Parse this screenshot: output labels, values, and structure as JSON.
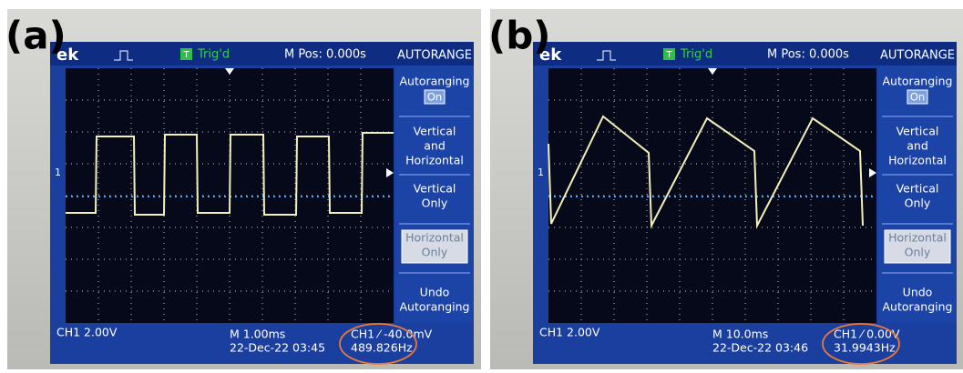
{
  "panels": [
    {
      "label": "(a)",
      "header": {
        "brand": "ek",
        "trig_icon": "T",
        "trigger": "Trig'd",
        "m_pos": "M Pos: 0.000s"
      },
      "marker": "1",
      "menu": {
        "title": "AUTORANGE",
        "items": [
          {
            "lines": [
              "Autoranging"
            ],
            "value": "On"
          },
          {
            "lines": [
              "Vertical",
              "and",
              "Horizontal"
            ]
          },
          {
            "lines": [
              "Vertical",
              "Only"
            ]
          },
          {
            "lines": [
              "Horizontal",
              "Only"
            ]
          },
          {
            "lines": [
              "Undo",
              "Autoranging"
            ]
          }
        ]
      },
      "footer": {
        "channel": "CH1  2.00V",
        "timebase": "M 1.00ms",
        "date": "22-Dec-22 03:45",
        "trigger": "CH1 ⁄ -40.0mV",
        "frequency": "489.826Hz"
      }
    },
    {
      "label": "(b)",
      "header": {
        "brand": "ek",
        "trig_icon": "T",
        "trigger": "Trig'd",
        "m_pos": "M Pos: 0.000s"
      },
      "marker": "1",
      "menu": {
        "title": "AUTORANGE",
        "items": [
          {
            "lines": [
              "Autoranging"
            ],
            "value": "On"
          },
          {
            "lines": [
              "Vertical",
              "and",
              "Horizontal"
            ]
          },
          {
            "lines": [
              "Vertical",
              "Only"
            ]
          },
          {
            "lines": [
              "Horizontal",
              "Only"
            ]
          },
          {
            "lines": [
              "Undo",
              "Autoranging"
            ]
          }
        ]
      },
      "footer": {
        "channel": "CH1  2.00V",
        "timebase": "M 10.0ms",
        "date": "22-Dec-22 03:46",
        "trigger": "CH1 ⁄ 0.00V",
        "frequency": "31.9943Hz"
      }
    }
  ]
}
